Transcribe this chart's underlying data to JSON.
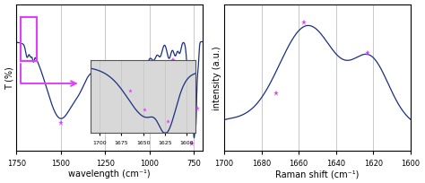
{
  "left_xlim": [
    1750,
    700
  ],
  "left_ylabel": "T (%)",
  "left_xlabel": "wavelength (cm⁻¹)",
  "left_xticks": [
    1750,
    1500,
    1250,
    1000,
    750
  ],
  "right_xlim": [
    1700,
    1600
  ],
  "right_ylabel": "intensity (a.u.)",
  "right_xlabel": "Raman shift (cm⁻¹)",
  "right_xticks": [
    1700,
    1680,
    1660,
    1640,
    1620,
    1600
  ],
  "line_color": "#1c2f80",
  "marker_color": "#e040fb",
  "bg_color": "#ffffff",
  "inset_bg": "#d8d8d8",
  "grid_color": "#c0c0c0",
  "box_color": "#e040fb"
}
